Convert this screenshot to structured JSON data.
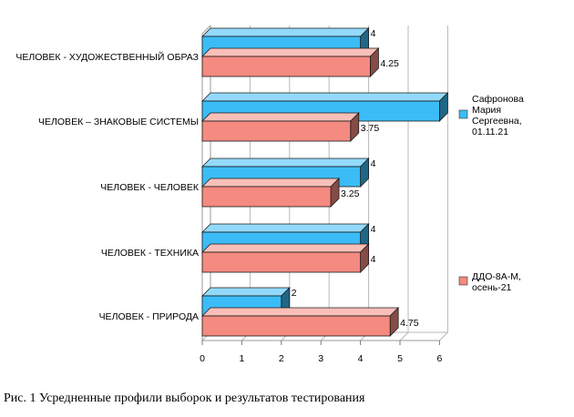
{
  "chart_data": {
    "type": "bar",
    "orientation": "horizontal",
    "style": "3d",
    "categories": [
      "ЧЕЛОВЕК - ХУДОЖЕСТВЕННЫЙ ОБРАЗ",
      "ЧЕЛОВЕК – ЗНАКОВЫЕ СИСТЕМЫ",
      "ЧЕЛОВЕК - ЧЕЛОВЕК",
      "ЧЕЛОВЕК - ТЕХНИКА",
      "ЧЕЛОВЕК - ПРИРОДА"
    ],
    "series": [
      {
        "name": "Сафронова Мария Сергеевна, 01.11.21",
        "legend_lines": [
          "Сафронова",
          "Мария",
          "Сергеевна,",
          "01.11.21"
        ],
        "color": "#3bbcf6",
        "values": [
          4,
          6,
          4,
          4,
          2
        ],
        "labels": [
          "4",
          "",
          "4",
          "4",
          "2"
        ]
      },
      {
        "name": "ДДО-8А-М, осень-21",
        "legend_lines": [
          "ДДО-8А-М,",
          "осень-21"
        ],
        "color": "#f48a80",
        "values": [
          4.25,
          3.75,
          3.25,
          4,
          4.75
        ],
        "labels": [
          "4.25",
          "3.75",
          "3.25",
          "4",
          "4.75"
        ]
      }
    ],
    "xlim": [
      0,
      6
    ],
    "xticks": [
      "0",
      "1",
      "2",
      "3",
      "4",
      "5",
      "6"
    ],
    "grid": true,
    "legend_position": "right"
  },
  "caption": "Рис. 1 Усредненные профили выборок и результатов тестирования"
}
